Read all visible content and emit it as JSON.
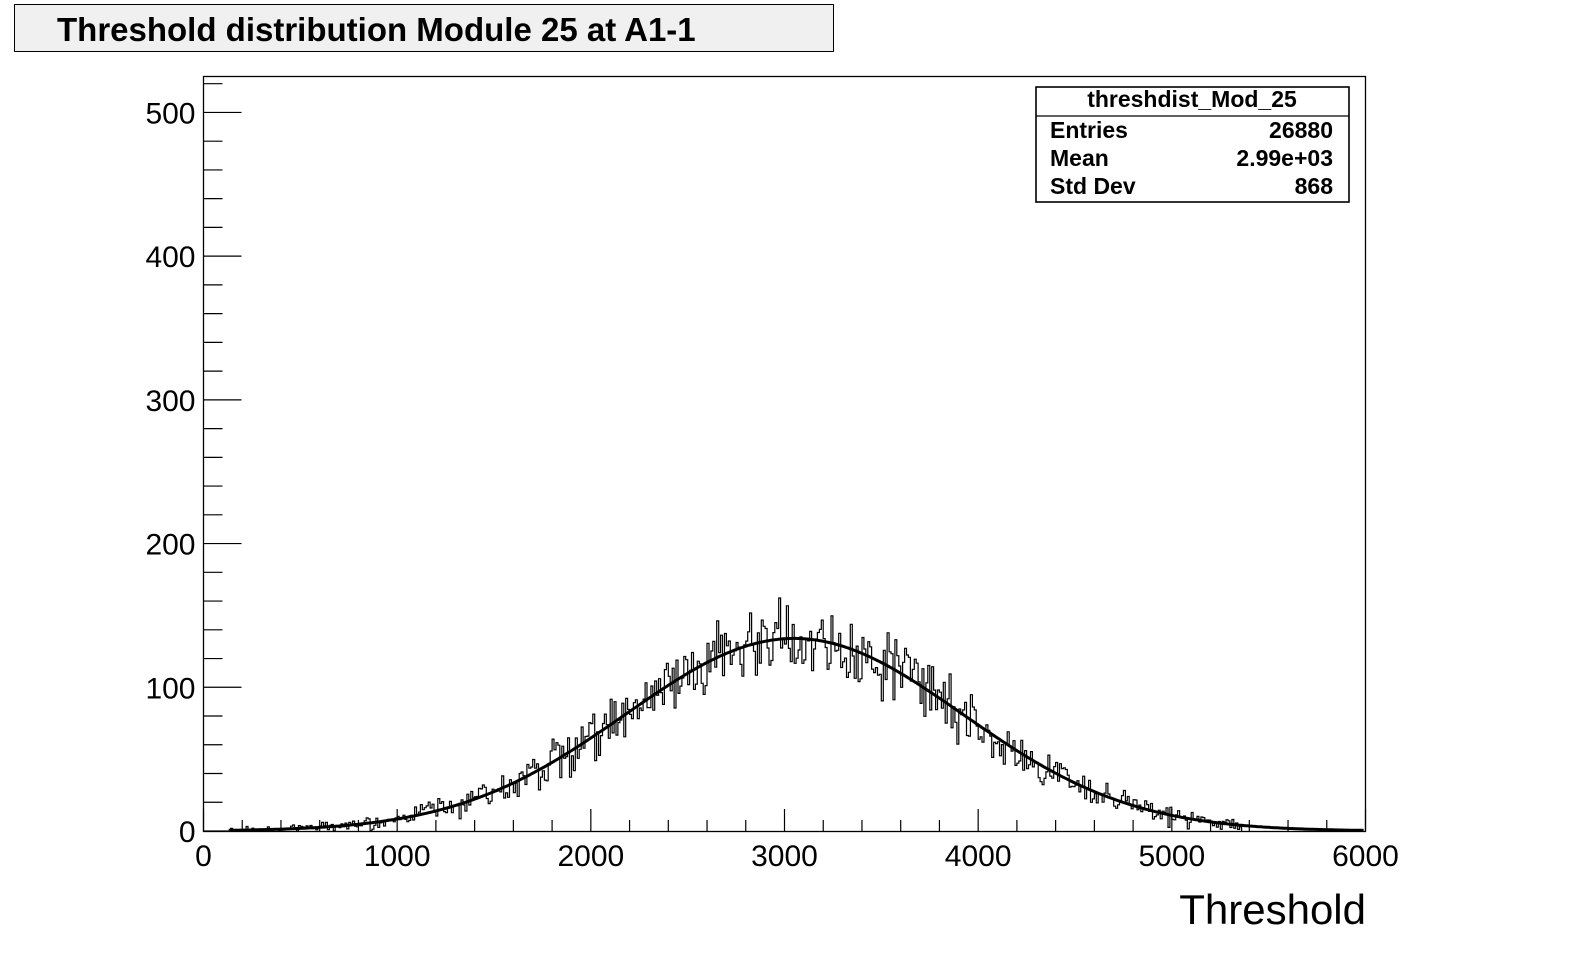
{
  "chart_data": {
    "type": "histogram",
    "title": "Threshold distribution Module 25 at A1-1",
    "xlabel": "Threshold",
    "ylabel": "",
    "xlim": [
      0,
      6000
    ],
    "ylim": [
      0,
      525
    ],
    "x_ticks": [
      0,
      1000,
      2000,
      3000,
      4000,
      5000,
      6000
    ],
    "y_ticks": [
      0,
      100,
      200,
      300,
      400,
      500
    ],
    "grid": false,
    "stats_box": {
      "name": "threshdist_Mod_25",
      "rows": [
        {
          "label": "Entries",
          "value": "26880"
        },
        {
          "label": "Mean",
          "value": "2.99e+03"
        },
        {
          "label": "Std Dev",
          "value": "868"
        }
      ],
      "placement": "top-right"
    },
    "histogram": {
      "bin_width": 10,
      "x_start": 140,
      "x_end": 5360,
      "fit_for_envelope": {
        "constant": 134,
        "mean": 3050,
        "sigma": 870
      }
    },
    "fit_curve": {
      "function": "gaus",
      "constant": 134,
      "mean": 3050,
      "sigma": 870,
      "x_range": [
        130,
        5990
      ]
    },
    "series": [
      {
        "type": "histogram",
        "color": "#000000"
      },
      {
        "type": "fit",
        "color": "#000000"
      }
    ]
  }
}
